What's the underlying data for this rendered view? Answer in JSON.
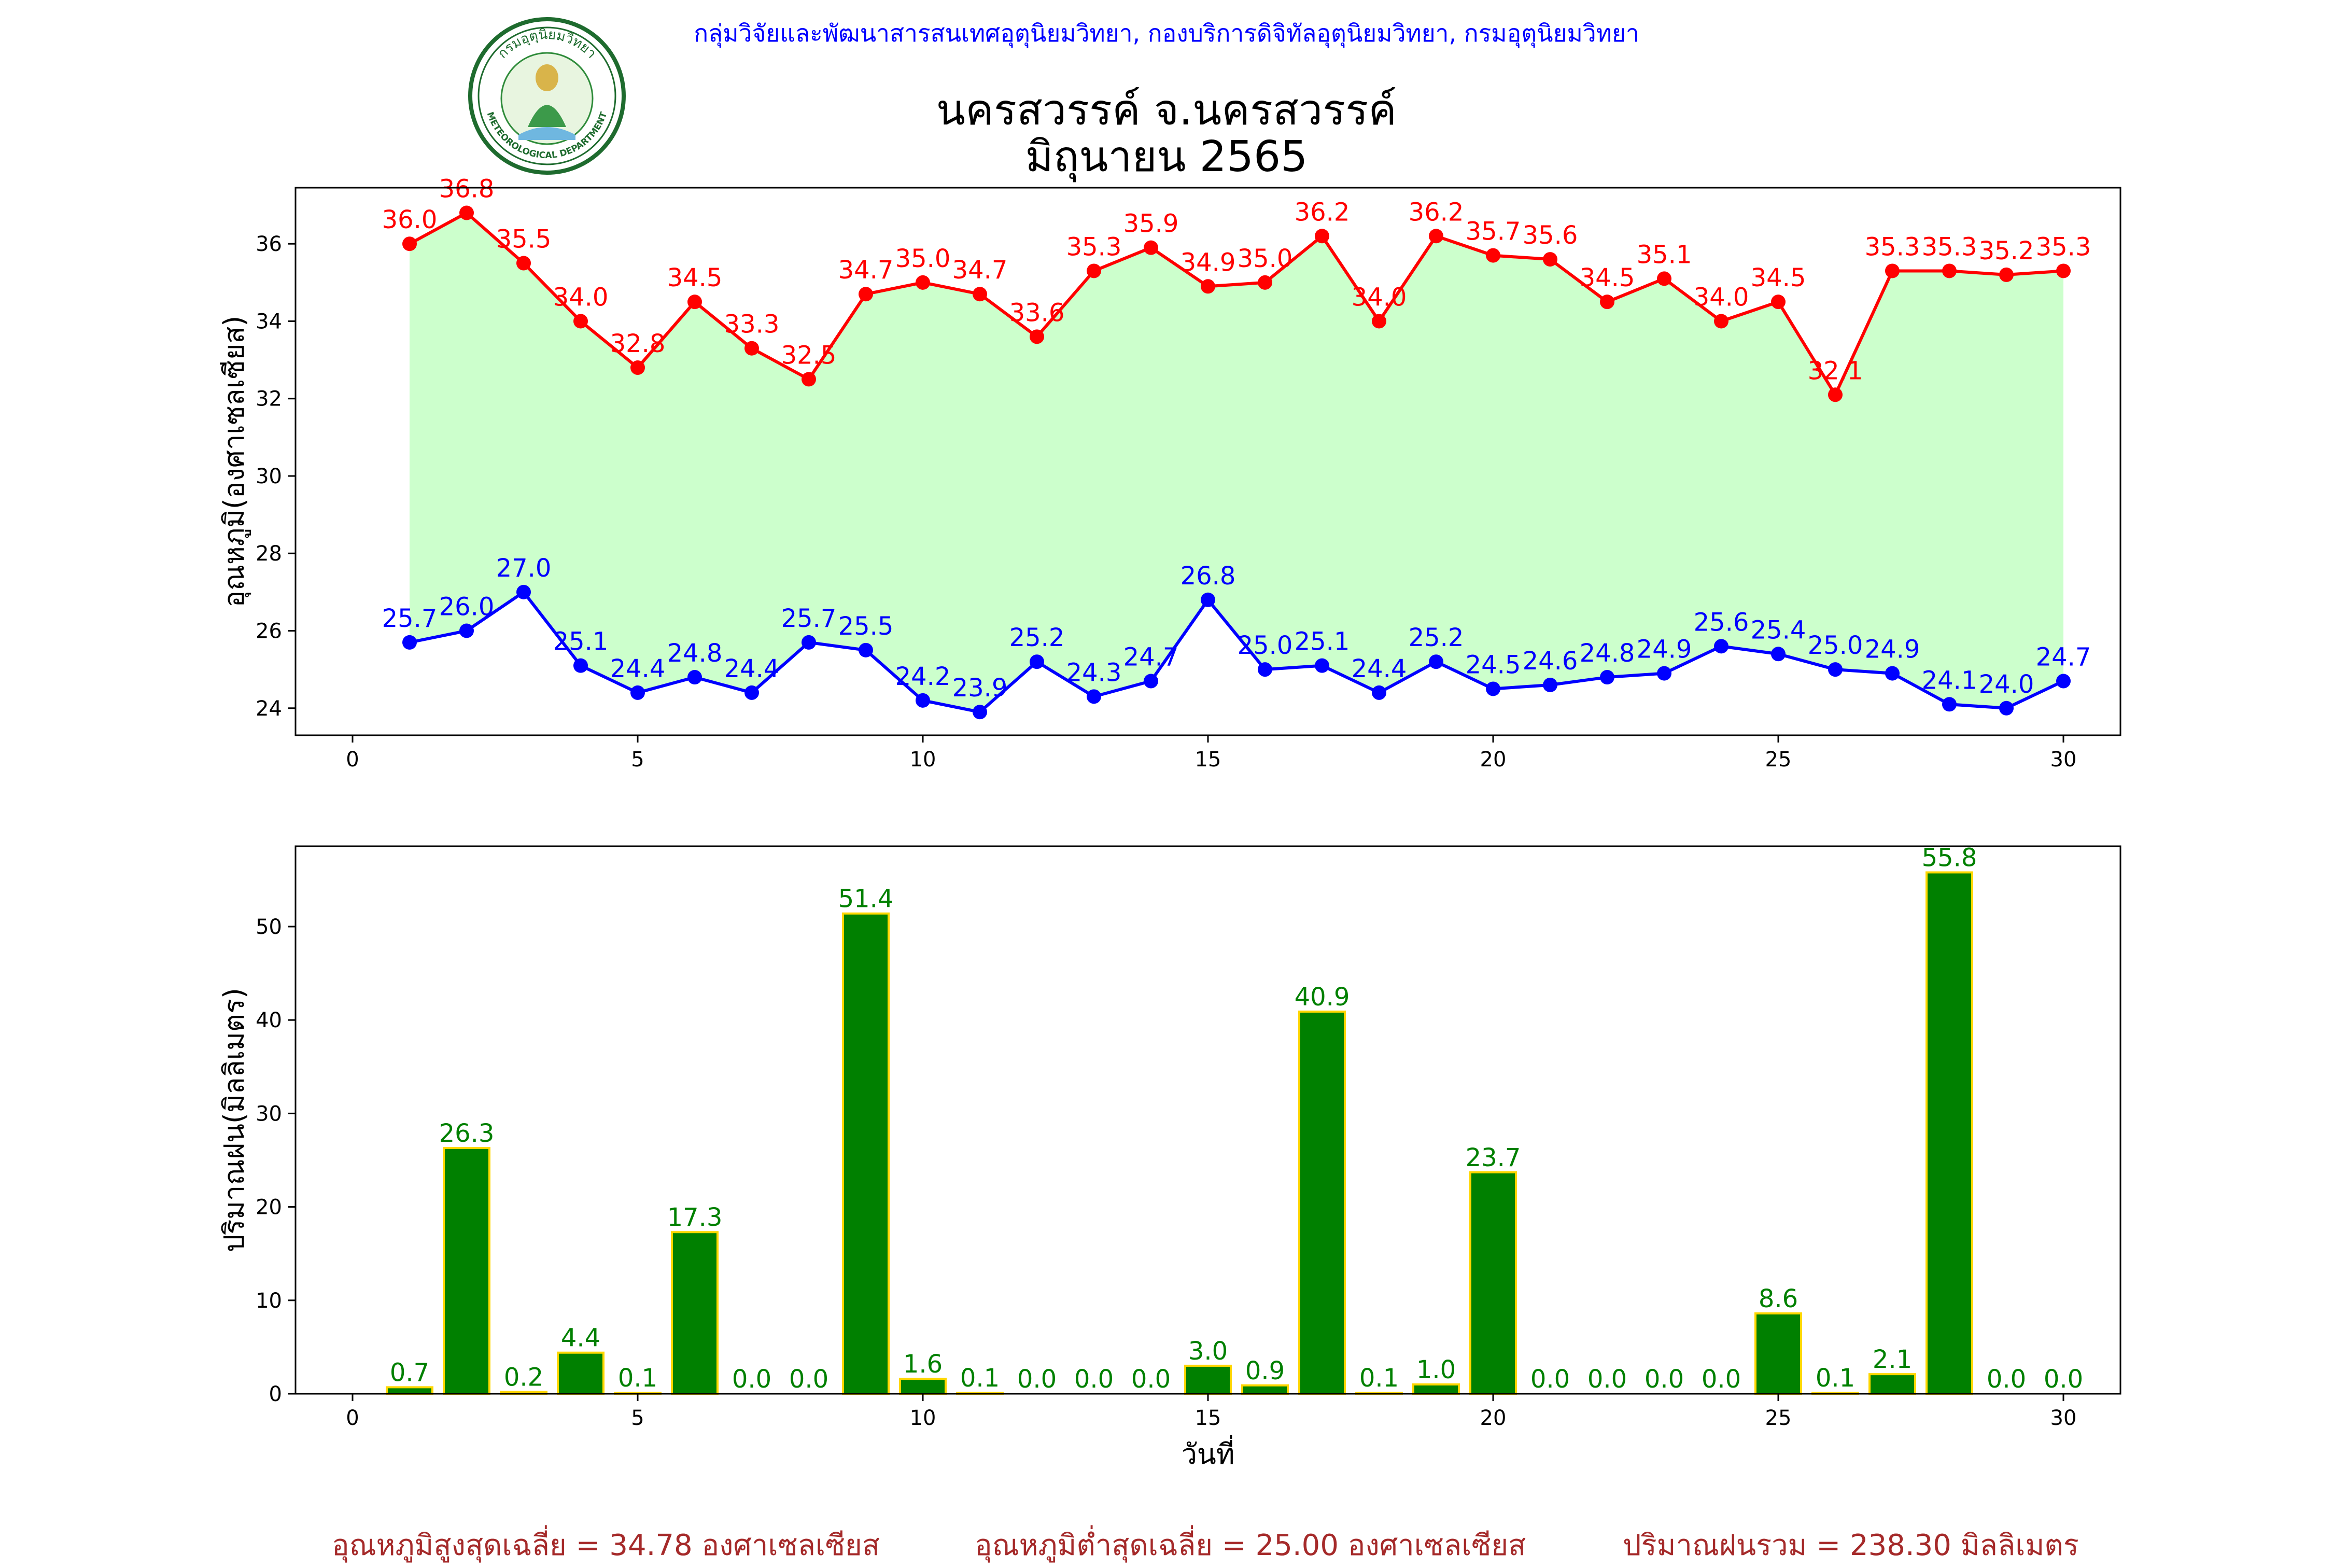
{
  "header": {
    "credit": "กลุ่มวิจัยและพัฒนาสารสนเทศอุตุนิยมวิทยา, กองบริการดิจิทัลอุตุนิยมวิทยา, กรมอุตุนิยมวิทยา",
    "title_line1": "นครสวรรค์  จ.นครสวรรค์",
    "title_line2": "มิถุนายน 2565",
    "logo_text_top": "กรมอุตุนิยมวิทยา",
    "logo_text_bottom": "METEOROLOGICAL DEPARTMENT"
  },
  "colors": {
    "max_line": "#ff0000",
    "min_line": "#0000ff",
    "fill": "#ccffcc",
    "rain_bar": "#008000",
    "rain_edge": "#ffd700",
    "rain_label": "#008000",
    "summary": "#a52a2a",
    "credit": "#0000ff"
  },
  "chart_data": [
    {
      "type": "line",
      "ylabel": "อุณหภูมิ(องศาเซลเซียส)",
      "xlabel": "",
      "x": [
        1,
        2,
        3,
        4,
        5,
        6,
        7,
        8,
        9,
        10,
        11,
        12,
        13,
        14,
        15,
        16,
        17,
        18,
        19,
        20,
        21,
        22,
        23,
        24,
        25,
        26,
        27,
        28,
        29,
        30
      ],
      "xlim": [
        -1,
        31
      ],
      "ylim": [
        23.3,
        37.45
      ],
      "xticks": [
        0,
        5,
        10,
        15,
        20,
        25,
        30
      ],
      "yticks": [
        24,
        26,
        28,
        30,
        32,
        34,
        36
      ],
      "fill_between": true,
      "grid": false,
      "series": [
        {
          "values": [
            36.0,
            36.8,
            35.5,
            34.0,
            32.8,
            34.5,
            33.3,
            32.5,
            34.7,
            35.0,
            34.7,
            33.6,
            35.3,
            35.9,
            34.9,
            35.0,
            36.2,
            34.0,
            36.2,
            35.7,
            35.6,
            34.5,
            35.1,
            34.0,
            34.5,
            32.1,
            35.3,
            35.3,
            35.2,
            35.3
          ]
        },
        {
          "values": [
            25.7,
            26.0,
            27.0,
            25.1,
            24.4,
            24.8,
            24.4,
            25.7,
            25.5,
            24.2,
            23.9,
            25.2,
            24.3,
            24.7,
            26.8,
            25.0,
            25.1,
            24.4,
            25.2,
            24.5,
            24.6,
            24.8,
            24.9,
            25.6,
            25.4,
            25.0,
            24.9,
            24.1,
            24.0,
            24.7
          ]
        }
      ]
    },
    {
      "type": "bar",
      "ylabel": "ปริมาณฝน(มิลลิเมตร)",
      "xlabel": "วันที่",
      "x": [
        1,
        2,
        3,
        4,
        5,
        6,
        7,
        8,
        9,
        10,
        11,
        12,
        13,
        14,
        15,
        16,
        17,
        18,
        19,
        20,
        21,
        22,
        23,
        24,
        25,
        26,
        27,
        28,
        29,
        30
      ],
      "xlim": [
        -1,
        31
      ],
      "ylim": [
        0,
        58.6
      ],
      "xticks": [
        0,
        5,
        10,
        15,
        20,
        25,
        30
      ],
      "yticks": [
        0,
        10,
        20,
        30,
        40,
        50
      ],
      "grid": false,
      "series": [
        {
          "values": [
            0.7,
            26.3,
            0.2,
            4.4,
            0.1,
            17.3,
            0.0,
            0.0,
            51.4,
            1.6,
            0.1,
            0.0,
            0.0,
            0.0,
            3.0,
            0.9,
            40.9,
            0.1,
            1.0,
            23.7,
            0.0,
            0.0,
            0.0,
            0.0,
            8.6,
            0.1,
            2.1,
            55.8,
            0.0,
            0.0
          ]
        }
      ]
    }
  ],
  "summary": {
    "avg_max": "อุณหภูมิสูงสุดเฉลี่ย = 34.78 องศาเซลเซียส",
    "avg_min": "อุณหภูมิต่ำสุดเฉลี่ย = 25.00 องศาเซลเซียส",
    "rain_total": "ปริมาณฝนรวม = 238.30 มิลลิเมตร"
  }
}
